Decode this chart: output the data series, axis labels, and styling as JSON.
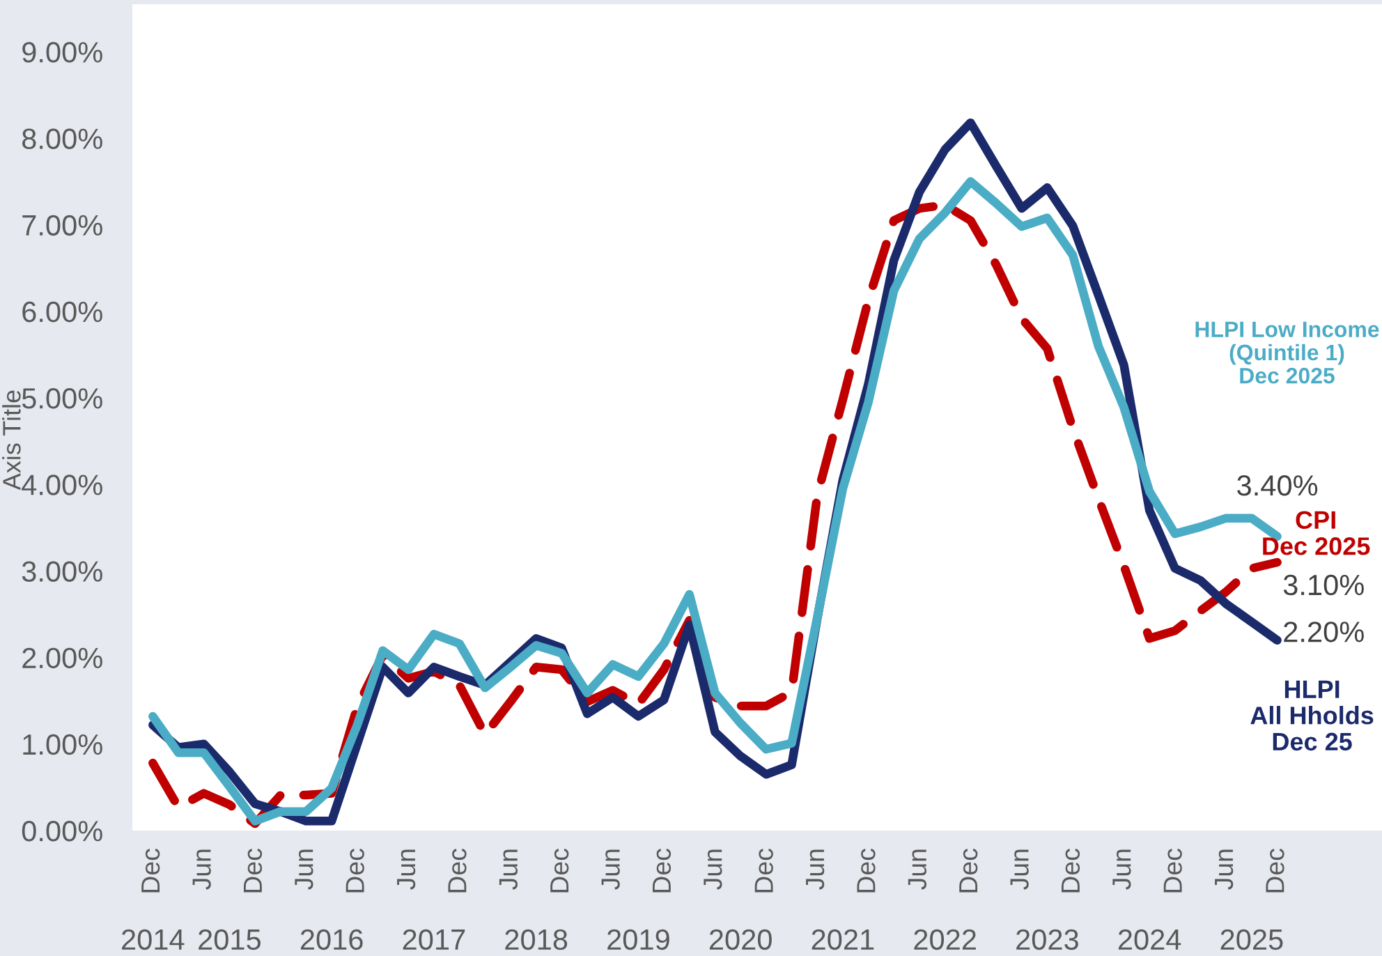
{
  "chart_data": {
    "type": "line",
    "ylabel": "Axis Title",
    "categories": [
      "Dec",
      null,
      "Jun",
      null,
      "Dec",
      null,
      "Jun",
      null,
      "Dec",
      null,
      "Jun",
      null,
      "Dec",
      null,
      "Jun",
      null,
      "Dec",
      null,
      "Jun",
      null,
      "Dec",
      null,
      "Jun",
      null,
      "Dec",
      null,
      "Jun",
      null,
      "Dec",
      null,
      "Jun",
      null,
      "Dec",
      null,
      "Jun",
      null,
      "Dec",
      null,
      "Jun",
      null,
      "Dec",
      null,
      "Jun",
      null,
      "Dec"
    ],
    "annotations": [
      "2014",
      "2015",
      "2016",
      "2017",
      "2018",
      "2019",
      "2020",
      "2021",
      "2022",
      "2023",
      "2024",
      "2025"
    ],
    "ylim": [
      0,
      9.55
    ],
    "yticks": [
      {
        "value": 0,
        "label": "0.00%"
      },
      {
        "value": 1,
        "label": "1.00%"
      },
      {
        "value": 2,
        "label": "2.00%"
      },
      {
        "value": 3,
        "label": "3.00%"
      },
      {
        "value": 4,
        "label": "4.00%"
      },
      {
        "value": 5,
        "label": "5.00%"
      },
      {
        "value": 6,
        "label": "6.00%"
      },
      {
        "value": 7,
        "label": "7.00%"
      },
      {
        "value": 8,
        "label": "8.00%"
      },
      {
        "value": 9,
        "label": "9.00%"
      }
    ],
    "series": [
      {
        "name": "CPI\nDec 2025",
        "color": "#c00000",
        "line_style": "dashed",
        "values": [
          0.78,
          0.27,
          0.43,
          0.3,
          0.08,
          0.41,
          0.41,
          0.43,
          1.43,
          2.03,
          1.76,
          1.84,
          1.68,
          1.11,
          1.49,
          1.89,
          1.86,
          1.49,
          1.62,
          1.46,
          1.86,
          2.43,
          1.54,
          1.44,
          1.44,
          1.6,
          3.87,
          4.98,
          6.13,
          7.05,
          7.19,
          7.23,
          7.05,
          6.54,
          5.92,
          5.57,
          4.65,
          3.84,
          3.06,
          2.22,
          2.31,
          2.54,
          2.76,
          3.03,
          3.1
        ],
        "value_labels": [
          null,
          null,
          null,
          null,
          null,
          null,
          null,
          null,
          null,
          null,
          null,
          null,
          null,
          null,
          null,
          null,
          null,
          null,
          null,
          null,
          null,
          null,
          null,
          null,
          null,
          null,
          null,
          null,
          null,
          null,
          null,
          null,
          null,
          null,
          null,
          null,
          null,
          null,
          null,
          null,
          null,
          null,
          null,
          null,
          "3.10%"
        ]
      },
      {
        "name": "HLPI\nAll Hholds\nDec 25",
        "color": "#1b2a6b",
        "line_style": "solid",
        "values": [
          1.22,
          0.96,
          1.0,
          0.68,
          0.31,
          0.22,
          0.11,
          0.11,
          1.0,
          1.89,
          1.59,
          1.89,
          1.78,
          1.68,
          1.95,
          2.22,
          2.11,
          1.35,
          1.54,
          1.32,
          1.51,
          2.38,
          1.14,
          0.86,
          0.65,
          0.76,
          2.45,
          4.05,
          5.16,
          6.59,
          7.38,
          7.87,
          8.18,
          7.68,
          7.19,
          7.43,
          6.99,
          6.19,
          5.38,
          3.7,
          3.03,
          2.89,
          2.62,
          2.41,
          2.2
        ],
        "value_labels": [
          null,
          null,
          null,
          null,
          null,
          null,
          null,
          null,
          null,
          null,
          null,
          null,
          null,
          null,
          null,
          null,
          null,
          null,
          null,
          null,
          null,
          null,
          null,
          null,
          null,
          null,
          null,
          null,
          null,
          null,
          null,
          null,
          null,
          null,
          null,
          null,
          null,
          null,
          null,
          null,
          null,
          null,
          null,
          null,
          "2.20%"
        ]
      },
      {
        "name": "HLPI Low Income\n(Quintile 1)\nDec 2025",
        "color": "#4bacc6",
        "line_style": "solid",
        "values": [
          1.32,
          0.9,
          0.9,
          0.51,
          0.11,
          0.22,
          0.22,
          0.49,
          1.22,
          2.08,
          1.86,
          2.27,
          2.16,
          1.65,
          1.89,
          2.14,
          2.05,
          1.59,
          1.92,
          1.78,
          2.16,
          2.73,
          1.59,
          1.24,
          0.94,
          1.01,
          2.46,
          3.95,
          4.95,
          6.24,
          6.84,
          7.14,
          7.5,
          7.25,
          6.98,
          7.08,
          6.65,
          5.6,
          4.89,
          3.92,
          3.43,
          3.51,
          3.61,
          3.61,
          3.4
        ],
        "value_labels": [
          null,
          null,
          null,
          null,
          null,
          null,
          null,
          null,
          null,
          null,
          null,
          null,
          null,
          null,
          null,
          null,
          null,
          null,
          null,
          null,
          null,
          null,
          null,
          null,
          null,
          null,
          null,
          null,
          null,
          null,
          null,
          null,
          null,
          null,
          null,
          null,
          null,
          null,
          null,
          null,
          null,
          null,
          null,
          null,
          "3.40%"
        ]
      }
    ]
  }
}
